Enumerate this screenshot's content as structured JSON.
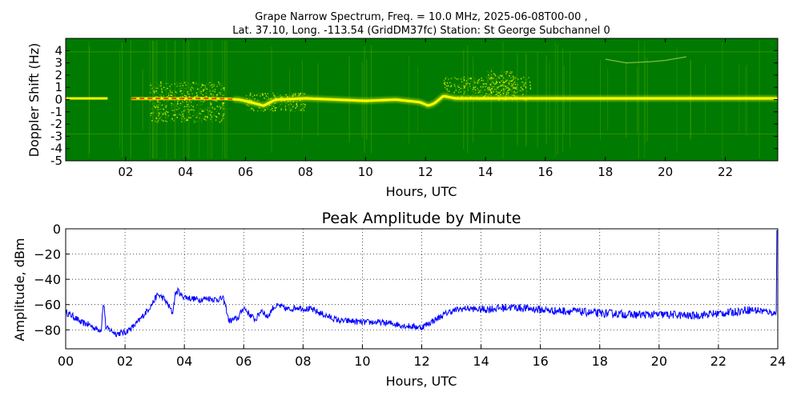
{
  "chart_data": [
    {
      "type": "heatmap",
      "title_line1": "Grape Narrow Spectrum, Freq. = 10.0 MHz, 2025-06-08T00-00 ,",
      "title_line2": "Lat.  37.10, Long. -113.54 (GridDM37fc) Station: St George Subchannel 0",
      "xlabel": "Hours, UTC",
      "ylabel": "Doppler Shift (Hz)",
      "xlim": [
        0,
        23.75
      ],
      "ylim": [
        -5,
        5
      ],
      "x_ticks": [
        2,
        4,
        6,
        8,
        10,
        12,
        14,
        16,
        18,
        20,
        22
      ],
      "x_tick_labels": [
        "02",
        "04",
        "06",
        "08",
        "10",
        "12",
        "14",
        "16",
        "18",
        "20",
        "22"
      ],
      "y_ticks": [
        -5,
        -4,
        -3,
        -2,
        -1,
        0,
        1,
        2,
        3,
        4
      ],
      "y_tick_labels": [
        "-5",
        "-4",
        "-3",
        "-2",
        "-1",
        "0",
        "1",
        "2",
        "3",
        "4"
      ],
      "colors": {
        "background": "#007a00",
        "weak": "#3f9f00",
        "medium": "#ffff00",
        "strong": "#ff3300"
      },
      "carrier_doppler_hz": [
        [
          0.0,
          0.1
        ],
        [
          1.0,
          0.1
        ],
        [
          2.0,
          0.1
        ],
        [
          3.0,
          0.1
        ],
        [
          4.0,
          0.1
        ],
        [
          5.0,
          0.1
        ],
        [
          5.8,
          0.0
        ],
        [
          6.3,
          -0.3
        ],
        [
          6.6,
          -0.5
        ],
        [
          7.0,
          0.0
        ],
        [
          8.0,
          0.1
        ],
        [
          9.0,
          0.0
        ],
        [
          10.0,
          -0.1
        ],
        [
          11.0,
          0.0
        ],
        [
          11.8,
          -0.2
        ],
        [
          12.1,
          -0.5
        ],
        [
          12.3,
          -0.3
        ],
        [
          12.6,
          0.3
        ],
        [
          13.0,
          0.1
        ],
        [
          14.0,
          0.1
        ],
        [
          16.0,
          0.1
        ],
        [
          18.0,
          0.1
        ],
        [
          20.0,
          0.1
        ],
        [
          22.0,
          0.1
        ],
        [
          23.75,
          0.1
        ]
      ],
      "active_spans": [
        {
          "x0": 0.0,
          "x1": 1.4,
          "level": "medium"
        },
        {
          "x0": 2.2,
          "x1": 5.6,
          "level": "strong"
        },
        {
          "x0": 5.6,
          "x1": 12.0,
          "level": "medium"
        },
        {
          "x0": 12.0,
          "x1": 23.75,
          "level": "medium"
        }
      ],
      "diffuse_regions": [
        {
          "x0": 2.8,
          "x1": 5.3,
          "y0": -1.8,
          "y1": 1.5
        },
        {
          "x0": 6.0,
          "x1": 8.0,
          "y0": -0.9,
          "y1": 0.6
        },
        {
          "x0": 12.6,
          "x1": 15.5,
          "y0": 0.0,
          "y1": 1.9
        },
        {
          "x0": 14.0,
          "x1": 15.0,
          "y0": 0.3,
          "y1": 2.4
        }
      ],
      "faint_trace_hz": [
        [
          18.0,
          3.3
        ],
        [
          18.7,
          3.0
        ],
        [
          19.5,
          3.1
        ],
        [
          20.0,
          3.2
        ],
        [
          20.7,
          3.5
        ]
      ],
      "faint_lines_hz": [
        -2.8,
        3.9
      ]
    },
    {
      "type": "line",
      "title": "Peak Amplitude by Minute",
      "xlabel": "Hours, UTC",
      "ylabel": "Amplitude, dBm",
      "xlim": [
        0,
        24
      ],
      "ylim": [
        -95,
        0
      ],
      "grid": true,
      "color": "#0000ff",
      "x_ticks": [
        0,
        2,
        4,
        6,
        8,
        10,
        12,
        14,
        16,
        18,
        20,
        22,
        24
      ],
      "x_tick_labels": [
        "00",
        "02",
        "04",
        "06",
        "08",
        "10",
        "12",
        "14",
        "16",
        "18",
        "20",
        "22",
        "24"
      ],
      "y_ticks": [
        0,
        -20,
        -40,
        -60,
        -80
      ],
      "y_tick_labels": [
        "0",
        "−20",
        "−40",
        "−60",
        "−80"
      ],
      "series_x_hours": [
        0.0,
        0.3,
        0.5,
        0.8,
        1.0,
        1.2,
        1.25,
        1.3,
        1.35,
        1.4,
        1.5,
        1.7,
        2.0,
        2.3,
        2.5,
        2.7,
        2.9,
        3.1,
        3.3,
        3.5,
        3.6,
        3.7,
        3.8,
        3.9,
        4.2,
        4.5,
        4.8,
        5.1,
        5.3,
        5.4,
        5.5,
        5.8,
        6.0,
        6.2,
        6.4,
        6.6,
        6.8,
        7.0,
        7.2,
        7.5,
        7.8,
        8.0,
        8.3,
        8.6,
        9.0,
        9.3,
        9.6,
        10.0,
        10.5,
        11.0,
        11.5,
        12.0,
        12.3,
        12.6,
        12.9,
        13.2,
        13.5,
        14.0,
        14.5,
        15.0,
        15.5,
        16.0,
        16.5,
        17.0,
        17.5,
        18.0,
        18.5,
        19.0,
        19.5,
        20.0,
        20.5,
        21.0,
        21.5,
        22.0,
        22.5,
        23.0,
        23.5,
        23.95
      ],
      "series_y_dbm": [
        -66,
        -70,
        -74,
        -76,
        -79,
        -80,
        -62,
        -61,
        -78,
        -79,
        -80,
        -83,
        -82,
        -77,
        -72,
        -66,
        -60,
        -52,
        -55,
        -62,
        -67,
        -51,
        -49,
        -53,
        -55,
        -56,
        -55,
        -56,
        -55,
        -62,
        -73,
        -71,
        -62,
        -68,
        -72,
        -64,
        -70,
        -62,
        -61,
        -64,
        -62,
        -63,
        -64,
        -67,
        -71,
        -73,
        -73,
        -74,
        -74,
        -75,
        -77,
        -78,
        -74,
        -70,
        -66,
        -64,
        -63,
        -64,
        -63,
        -62,
        -63,
        -64,
        -65,
        -65,
        -66,
        -67,
        -67,
        -68,
        -68,
        -68,
        -68,
        -69,
        -68,
        -67,
        -66,
        -64,
        -65,
        -67
      ]
    }
  ]
}
